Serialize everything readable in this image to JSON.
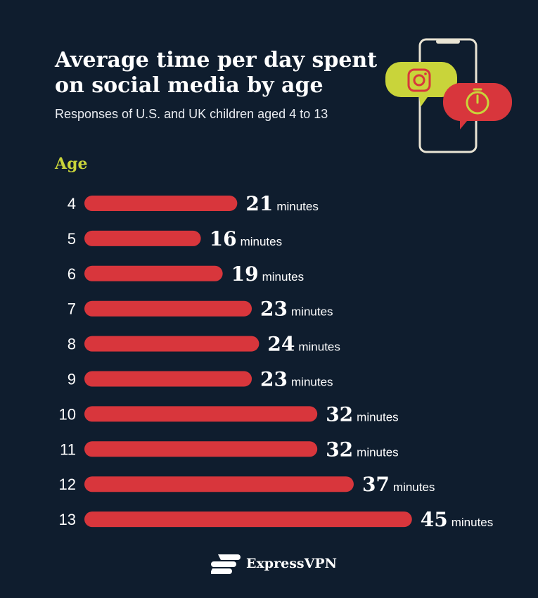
{
  "title": "Average time per day spent on social media by age",
  "subtitle": "Responses of U.S. and UK children aged 4 to 13",
  "axis_label": "Age",
  "unit": "minutes",
  "brand": "ExpressVPN",
  "colors": {
    "background": "#0f1d2e",
    "bar": "#d8363c",
    "accent": "#c9d43a",
    "bubble_red": "#d8363c"
  },
  "icons": [
    "phone-icon",
    "instagram-icon",
    "stopwatch-icon",
    "expressvpn-logo-icon"
  ],
  "chart_data": {
    "type": "bar",
    "orientation": "horizontal",
    "title": "Average time per day spent on social media by age",
    "subtitle": "Responses of U.S. and UK children aged 4 to 13",
    "ylabel": "Age",
    "unit": "minutes",
    "categories": [
      "4",
      "5",
      "6",
      "7",
      "8",
      "9",
      "10",
      "11",
      "12",
      "13"
    ],
    "values": [
      21,
      16,
      19,
      23,
      24,
      23,
      32,
      32,
      37,
      45
    ],
    "grid": false
  }
}
